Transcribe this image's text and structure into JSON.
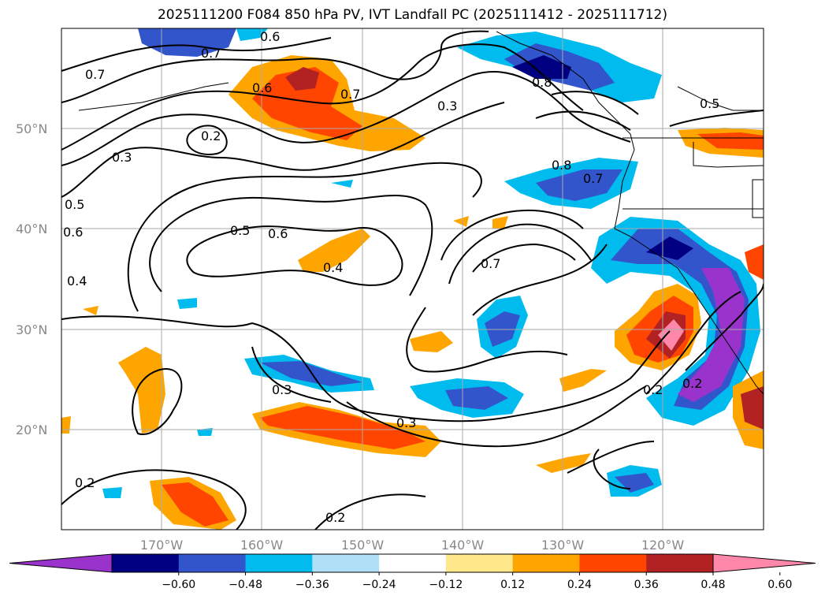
{
  "title": "2025111200 F084 850 hPa PV, IVT Landfall PC (2025111412 - 2025111712)",
  "lat_labels": [
    "50°N",
    "40°N",
    "30°N",
    "20°N"
  ],
  "lon_labels": [
    "170°W",
    "160°W",
    "150°W",
    "140°W",
    "130°W",
    "120°W"
  ],
  "colorbar": {
    "ticks": [
      "−0.60",
      "−0.48",
      "−0.36",
      "−0.24",
      "−0.12",
      "0.12",
      "0.24",
      "0.36",
      "0.48",
      "0.60"
    ],
    "colors": [
      "#9933cc",
      "#000080",
      "#3355cc",
      "#00bbee",
      "#b0e0f8",
      "#ffffff",
      "#ffe88a",
      "#ffa500",
      "#ff4500",
      "#b22222",
      "#ff88aa"
    ]
  },
  "contour_labels": [
    "0.6",
    "0.7",
    "0.8",
    "0.7",
    "0.6",
    "0.7",
    "0.3",
    "0.2",
    "0.3",
    "0.8",
    "0.7",
    "0.5",
    "0.5",
    "0.6",
    "0.4",
    "0.7",
    "0.5",
    "0.6",
    "0.4",
    "0.3",
    "0.3",
    "0.2",
    "0.2",
    "0.2",
    "0.2"
  ]
}
